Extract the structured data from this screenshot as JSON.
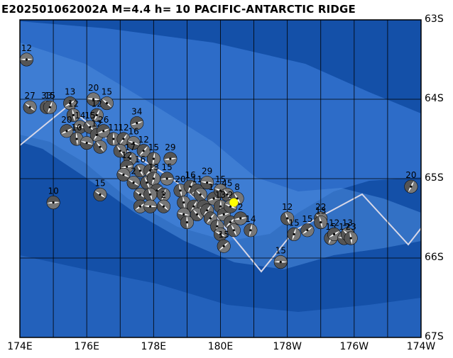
{
  "title": "E202501062002A  M=4.4  h= 10  PACIFIC-ANTARCTIC RIDGE",
  "lat_labels": [
    "63S",
    "64S",
    "65S",
    "66S",
    "67S"
  ],
  "lon_labels": [
    "174E",
    "176E",
    "178E",
    "180E",
    "178W",
    "176W",
    "174W"
  ],
  "colors": {
    "ocean_deep": "#1450a8",
    "ocean_mid": "#2d6cc8",
    "ocean_light": "#4d8cdc",
    "grid": "#000000",
    "ridge": "#d8d8e8",
    "event_marker": "#ffff00"
  },
  "event": {
    "lon_east": 180.4,
    "lat": -65.3
  },
  "mechanisms": [
    {
      "lon": 174.2,
      "lat": -63.5,
      "label": "12"
    },
    {
      "lon": 174.3,
      "lat": -64.1,
      "label": "27"
    },
    {
      "lon": 174.8,
      "lat": -64.1,
      "label": "33"
    },
    {
      "lon": 174.9,
      "lat": -64.1,
      "label": "15"
    },
    {
      "lon": 175.5,
      "lat": -64.05,
      "label": "13"
    },
    {
      "lon": 176.2,
      "lat": -64.0,
      "label": "20"
    },
    {
      "lon": 176.6,
      "lat": -64.05,
      "label": "15"
    },
    {
      "lon": 175.6,
      "lat": -64.2,
      "label": "12"
    },
    {
      "lon": 176.3,
      "lat": -64.2,
      "label": "12"
    },
    {
      "lon": 175.4,
      "lat": -64.4,
      "label": "20"
    },
    {
      "lon": 175.8,
      "lat": -64.35,
      "label": "14"
    },
    {
      "lon": 176.1,
      "lat": -64.35,
      "label": "15"
    },
    {
      "lon": 175.7,
      "lat": -64.5,
      "label": "10"
    },
    {
      "lon": 176.3,
      "lat": -64.45,
      "label": "12"
    },
    {
      "lon": 176.5,
      "lat": -64.4,
      "label": "26"
    },
    {
      "lon": 176.0,
      "lat": -64.55,
      "label": ""
    },
    {
      "lon": 176.4,
      "lat": -64.6,
      "label": ""
    },
    {
      "lon": 176.8,
      "lat": -64.5,
      "label": "11"
    },
    {
      "lon": 177.1,
      "lat": -64.5,
      "label": "12"
    },
    {
      "lon": 177.5,
      "lat": -64.3,
      "label": "34"
    },
    {
      "lon": 177.4,
      "lat": -64.55,
      "label": "16"
    },
    {
      "lon": 177.0,
      "lat": -64.65,
      "label": ""
    },
    {
      "lon": 177.3,
      "lat": -64.75,
      "label": "17"
    },
    {
      "lon": 177.7,
      "lat": -64.65,
      "label": "12"
    },
    {
      "lon": 177.2,
      "lat": -64.85,
      "label": "12"
    },
    {
      "lon": 177.1,
      "lat": -64.95,
      "label": ""
    },
    {
      "lon": 177.6,
      "lat": -64.9,
      "label": "16"
    },
    {
      "lon": 178.0,
      "lat": -64.75,
      "label": "15"
    },
    {
      "lon": 177.9,
      "lat": -64.9,
      "label": ""
    },
    {
      "lon": 178.5,
      "lat": -64.75,
      "label": "29"
    },
    {
      "lon": 177.4,
      "lat": -65.05,
      "label": "2"
    },
    {
      "lon": 177.8,
      "lat": -65.05,
      "label": ""
    },
    {
      "lon": 178.0,
      "lat": -65.0,
      "label": "13"
    },
    {
      "lon": 178.1,
      "lat": -65.15,
      "label": ""
    },
    {
      "lon": 178.4,
      "lat": -65.0,
      "label": "15"
    },
    {
      "lon": 177.6,
      "lat": -65.2,
      "label": ""
    },
    {
      "lon": 177.9,
      "lat": -65.2,
      "label": ""
    },
    {
      "lon": 178.3,
      "lat": -65.2,
      "label": ""
    },
    {
      "lon": 177.6,
      "lat": -65.35,
      "label": ""
    },
    {
      "lon": 177.9,
      "lat": -65.35,
      "label": ""
    },
    {
      "lon": 178.3,
      "lat": -65.35,
      "label": "2"
    },
    {
      "lon": 178.8,
      "lat": -65.15,
      "label": "20"
    },
    {
      "lon": 179.1,
      "lat": -65.1,
      "label": "16"
    },
    {
      "lon": 179.3,
      "lat": -65.15,
      "label": "11"
    },
    {
      "lon": 179.6,
      "lat": -65.05,
      "label": "29"
    },
    {
      "lon": 179.4,
      "lat": -65.2,
      "label": ""
    },
    {
      "lon": 178.9,
      "lat": -65.3,
      "label": ""
    },
    {
      "lon": 179.2,
      "lat": -65.35,
      "label": ""
    },
    {
      "lon": 179.5,
      "lat": -65.35,
      "label": ""
    },
    {
      "lon": 178.9,
      "lat": -65.45,
      "label": ""
    },
    {
      "lon": 179.3,
      "lat": -65.45,
      "label": ""
    },
    {
      "lon": 179.0,
      "lat": -65.55,
      "label": ""
    },
    {
      "lon": 179.6,
      "lat": -65.4,
      "label": ""
    },
    {
      "lon": 179.8,
      "lat": -65.25,
      "label": "12"
    },
    {
      "lon": 180.0,
      "lat": -65.15,
      "label": "15"
    },
    {
      "lon": 180.2,
      "lat": -65.2,
      "label": "45"
    },
    {
      "lon": 180.0,
      "lat": -65.35,
      "label": "13"
    },
    {
      "lon": 179.7,
      "lat": -65.5,
      "label": ""
    },
    {
      "lon": 180.1,
      "lat": -65.45,
      "label": ""
    },
    {
      "lon": 180.3,
      "lat": -65.35,
      "label": "2"
    },
    {
      "lon": 180.5,
      "lat": -65.25,
      "label": "8"
    },
    {
      "lon": 179.9,
      "lat": -65.6,
      "label": ""
    },
    {
      "lon": 180.3,
      "lat": -65.55,
      "label": ""
    },
    {
      "lon": 180.6,
      "lat": -65.5,
      "label": "2"
    },
    {
      "lon": 180.0,
      "lat": -65.7,
      "label": ""
    },
    {
      "lon": 180.4,
      "lat": -65.65,
      "label": ""
    },
    {
      "lon": 180.9,
      "lat": -65.65,
      "label": "14"
    },
    {
      "lon": 180.1,
      "lat": -65.85,
      "label": "15"
    },
    {
      "lon": 175.0,
      "lat": -65.3,
      "label": "10"
    },
    {
      "lon": 176.4,
      "lat": -65.2,
      "label": "15"
    },
    {
      "lon": 182.0,
      "lat": -65.5,
      "label": "12"
    },
    {
      "lon": 182.2,
      "lat": -65.7,
      "label": "15"
    },
    {
      "lon": 182.6,
      "lat": -65.65,
      "label": "15"
    },
    {
      "lon": 181.8,
      "lat": -66.05,
      "label": "15"
    },
    {
      "lon": 183.0,
      "lat": -65.5,
      "label": "22"
    },
    {
      "lon": 183.0,
      "lat": -65.55,
      "label": "13"
    },
    {
      "lon": 183.3,
      "lat": -65.75,
      "label": "15"
    },
    {
      "lon": 183.4,
      "lat": -65.7,
      "label": "12"
    },
    {
      "lon": 183.7,
      "lat": -65.75,
      "label": "12"
    },
    {
      "lon": 183.8,
      "lat": -65.7,
      "label": "13"
    },
    {
      "lon": 183.9,
      "lat": -65.75,
      "label": "23"
    },
    {
      "lon": 185.7,
      "lat": -65.1,
      "label": "20"
    }
  ]
}
